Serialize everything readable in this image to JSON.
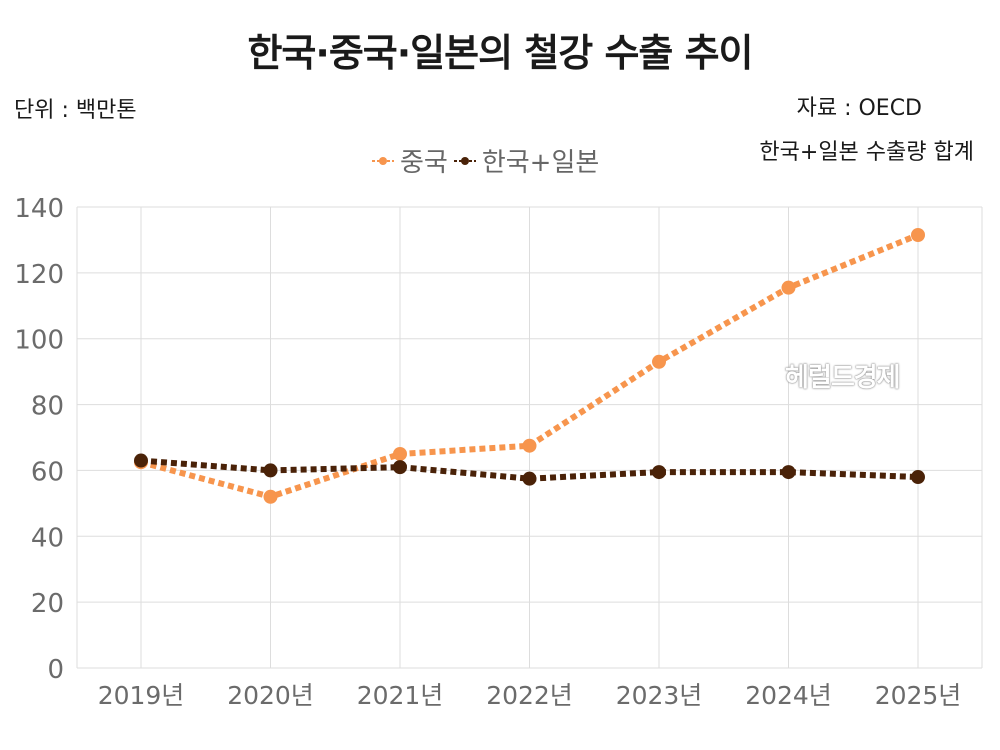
{
  "title": "한국·중국·일본의 철강 수출 추이",
  "unit_label": "단위 : 백만톤",
  "source": "자료 : OECD",
  "note": "한국+일본 수출량 합계",
  "watermark": "헤럴드경제",
  "chart_data": {
    "type": "line",
    "categories": [
      "2019년",
      "2020년",
      "2021년",
      "2022년",
      "2023년",
      "2024년",
      "2025년"
    ],
    "series": [
      {
        "name": "중국",
        "color": "#f7954d",
        "values": [
          62.5,
          52,
          65,
          67.5,
          93,
          115.5,
          131.5
        ]
      },
      {
        "name": "한국+일본",
        "color": "#4a2208",
        "values": [
          63,
          60,
          61,
          57.5,
          59.5,
          59.5,
          58
        ]
      }
    ],
    "ylim": [
      0,
      140
    ],
    "yticks": [
      0,
      20,
      40,
      60,
      80,
      100,
      120,
      140
    ],
    "grid": true,
    "legend_position": "top"
  }
}
